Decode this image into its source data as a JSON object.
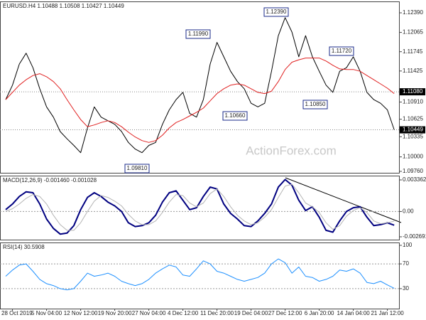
{
  "chart_data": [
    {
      "type": "line",
      "title": "EURUSD.H4  1.10488 1.10508 1.10427 1.10449",
      "watermark": "ActionForex.com",
      "ylim": [
        1.09736,
        1.12579
      ],
      "yticks": [
        {
          "value": 1.1239,
          "label": "1.12390"
        },
        {
          "value": 1.12065,
          "label": "1.12065"
        },
        {
          "value": 1.11745,
          "label": "1.11745"
        },
        {
          "value": 1.11425,
          "label": "1.11425"
        },
        {
          "value": 1.1108,
          "label": "1.11080"
        },
        {
          "value": 1.1091,
          "label": "1.10910"
        },
        {
          "value": 1.10625,
          "label": "1.10625"
        },
        {
          "value": 1.10449,
          "label": "1.10449"
        },
        {
          "value": 1.10335,
          "label": "1.10335"
        },
        {
          "value": 1.1,
          "label": "1.10000"
        },
        {
          "value": 1.0976,
          "label": "1.09760"
        }
      ],
      "hlines": [
        1.1108,
        1.10449
      ],
      "grid": false,
      "annotations": [
        "1.12390",
        "1.11990",
        "1.11720",
        "1.10660",
        "1.10850",
        "1.09810"
      ],
      "series": [
        {
          "color": "#000000",
          "values": [
            1.1095,
            1.1119,
            1.1154,
            1.1172,
            1.1148,
            1.1113,
            1.1083,
            1.1066,
            1.1042,
            1.103,
            1.1019,
            1.1007,
            1.1048,
            1.1083,
            1.1066,
            1.106,
            1.1054,
            1.1042,
            1.1024,
            1.1013,
            1.1007,
            1.1019,
            1.1024,
            1.1054,
            1.1078,
            1.1095,
            1.1107,
            1.1072,
            1.1066,
            1.1095,
            1.1154,
            1.119,
            1.1166,
            1.1142,
            1.1125,
            1.1113,
            1.1089,
            1.1083,
            1.1089,
            1.1142,
            1.1201,
            1.1231,
            1.1207,
            1.1166,
            1.1201,
            1.1166,
            1.1142,
            1.1119,
            1.1107,
            1.1142,
            1.1148,
            1.1166,
            1.1142,
            1.1107,
            1.1095,
            1.1089,
            1.1078,
            1.1045
          ]
        },
        {
          "color": "#e02020",
          "values": [
            1.1095,
            1.1107,
            1.1119,
            1.1128,
            1.1135,
            1.1138,
            1.1133,
            1.1125,
            1.1113,
            1.1095,
            1.1078,
            1.1062,
            1.105,
            1.1053,
            1.1057,
            1.106,
            1.1057,
            1.105,
            1.1041,
            1.1033,
            1.1027,
            1.1024,
            1.1027,
            1.1036,
            1.1048,
            1.1057,
            1.1062,
            1.1068,
            1.1074,
            1.1081,
            1.1093,
            1.1105,
            1.1113,
            1.1119,
            1.1121,
            1.1119,
            1.1113,
            1.1107,
            1.1105,
            1.1109,
            1.1125,
            1.1145,
            1.1157,
            1.1161,
            1.1164,
            1.1164,
            1.1164,
            1.1159,
            1.1152,
            1.1146,
            1.1145,
            1.1145,
            1.1142,
            1.1135,
            1.1128,
            1.1121,
            1.1114,
            1.1105
          ]
        }
      ]
    },
    {
      "type": "line",
      "title": "MACD(12,26,9) -0.001460 -0.001028",
      "ylim": [
        -0.002691,
        0.003362
      ],
      "yticks": [
        0.003362,
        {
          "value": 0,
          "label": "0.00"
        },
        -0.002691
      ],
      "grid": true,
      "series": [
        {
          "color": "#000080",
          "values": [
            0.0002,
            0.0008,
            0.0016,
            0.0021,
            0.002,
            0.0008,
            -0.0008,
            -0.0018,
            -0.0024,
            -0.0023,
            -0.0015,
            0.0002,
            0.0015,
            0.002,
            0.0016,
            0.001,
            0.0006,
            0,
            -0.0012,
            -0.0016,
            -0.0015,
            -0.0012,
            -0.0004,
            0.001,
            0.002,
            0.0022,
            0.0012,
            0.0002,
            0.0004,
            0.0016,
            0.0026,
            0.0024,
            0.0008,
            -0.0002,
            -0.0008,
            -0.0015,
            -0.0016,
            -0.001,
            -0.0002,
            0.0008,
            0.0026,
            0.0034,
            0.0028,
            0.0012,
            0.0001,
            0.0005,
            -0.0006,
            -0.002,
            -0.0022,
            -0.001,
            0,
            0.0004,
            0.0005,
            -0.0006,
            -0.0015,
            -0.0014,
            -0.0012,
            -0.00146
          ]
        },
        {
          "color": "#b4b4b4",
          "values": [
            0,
            0.0003,
            0.0008,
            0.0014,
            0.0018,
            0.0016,
            0.0008,
            -0.0004,
            -0.0014,
            -0.002,
            -0.002,
            -0.0012,
            0,
            0.0011,
            0.0017,
            0.0015,
            0.0011,
            0.0006,
            -0.0003,
            -0.001,
            -0.0014,
            -0.0014,
            -0.001,
            -0.0001,
            0.001,
            0.0018,
            0.0017,
            0.0009,
            0.0005,
            0.0009,
            0.0019,
            0.0024,
            0.0016,
            0.0005,
            -0.0004,
            -0.001,
            -0.0014,
            -0.0012,
            -0.0006,
            0.0002,
            0.0015,
            0.0027,
            0.0029,
            0.002,
            0.0009,
            0.0005,
            -0.0001,
            -0.0012,
            -0.0019,
            -0.0015,
            -0.0005,
            0.0001,
            0.0004,
            -0.0001,
            -0.001,
            -0.0013,
            -0.0012,
            -0.001028
          ]
        }
      ]
    },
    {
      "type": "line",
      "title": "RSI(14) 30.5908",
      "ylim": [
        0,
        100
      ],
      "yticks": [
        100,
        70,
        30
      ],
      "grid": true,
      "categories": [
        null,
        "28 Oct 2019",
        null,
        null,
        null,
        null,
        "5 Nov 04:00",
        null,
        null,
        null,
        null,
        "12 Nov 12:00",
        null,
        null,
        null,
        null,
        "19 Nov 20:00",
        null,
        null,
        null,
        null,
        "27 Nov 04:00",
        null,
        null,
        null,
        null,
        "4 Dec 12:00",
        null,
        null,
        null,
        null,
        "11 Dec 20:00",
        null,
        null,
        null,
        null,
        "19 Dec 04:00",
        null,
        null,
        null,
        null,
        "27 Dec 12:00",
        null,
        null,
        null,
        null,
        "6 Jan 20:00",
        null,
        null,
        null,
        null,
        "14 Jan 04:00",
        null,
        null,
        null,
        null,
        "21 Jan 12:00",
        null
      ],
      "series": [
        {
          "color": "#1e90ff",
          "values": [
            50,
            60,
            68,
            70,
            58,
            45,
            38,
            35,
            30,
            28,
            30,
            42,
            55,
            50,
            52,
            55,
            50,
            42,
            38,
            35,
            38,
            45,
            55,
            62,
            68,
            65,
            52,
            50,
            62,
            75,
            70,
            58,
            55,
            50,
            45,
            42,
            45,
            48,
            55,
            70,
            78,
            72,
            55,
            65,
            50,
            48,
            42,
            45,
            50,
            60,
            58,
            62,
            55,
            40,
            38,
            42,
            36,
            30.5908
          ]
        }
      ]
    }
  ]
}
